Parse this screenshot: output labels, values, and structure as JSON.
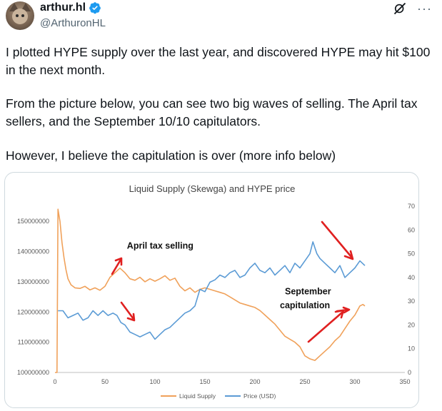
{
  "author": {
    "display_name": "arthur.hl",
    "handle": "@ArthuronHL",
    "avatar": "cat-avatar",
    "verified_color": "#1d9bf0"
  },
  "icons": {
    "grok": "grok-icon",
    "more": "more-icon"
  },
  "tweet": {
    "paragraphs": [
      "I plotted HYPE supply over the last year, and discovered HYPE may hit $100 in the next month.",
      "From the picture below, you can see two big waves of selling. The April tax sellers, and the September 10/10 capitulators.",
      "However, I believe the capitulation is over (more info below)"
    ]
  },
  "chart_data": {
    "type": "line",
    "title": "Liquid Supply (Skewga) and HYPE price",
    "x_ticks": [
      0,
      50,
      100,
      150,
      200,
      250,
      300,
      350
    ],
    "xlim": [
      0,
      350
    ],
    "y_left_ticks": [
      "100000000",
      "110000000",
      "120000000",
      "130000000",
      "140000000",
      "150000000"
    ],
    "y_left_range": [
      100000000,
      155000000
    ],
    "y_right_ticks": [
      "0",
      "10",
      "20",
      "30",
      "40",
      "50",
      "60",
      "70"
    ],
    "y_right_range": [
      0,
      70
    ],
    "grid": false,
    "legend_position": "bottom",
    "series": [
      {
        "name": "Liquid Supply",
        "axis": "left",
        "color": "#f0a15a",
        "points": [
          [
            0,
            100000000
          ],
          [
            1,
            100000000
          ],
          [
            2,
            100000000
          ],
          [
            3,
            154000000
          ],
          [
            5,
            150000000
          ],
          [
            7,
            143000000
          ],
          [
            9,
            138000000
          ],
          [
            11,
            134000000
          ],
          [
            13,
            131000000
          ],
          [
            16,
            129000000
          ],
          [
            20,
            128000000
          ],
          [
            25,
            127800000
          ],
          [
            30,
            128500000
          ],
          [
            35,
            127300000
          ],
          [
            40,
            128000000
          ],
          [
            45,
            127200000
          ],
          [
            50,
            128500000
          ],
          [
            55,
            131500000
          ],
          [
            60,
            133000000
          ],
          [
            65,
            134500000
          ],
          [
            70,
            133000000
          ],
          [
            75,
            131000000
          ],
          [
            80,
            130500000
          ],
          [
            85,
            131500000
          ],
          [
            90,
            130000000
          ],
          [
            95,
            131000000
          ],
          [
            100,
            130200000
          ],
          [
            105,
            131000000
          ],
          [
            110,
            132000000
          ],
          [
            115,
            130500000
          ],
          [
            120,
            131200000
          ],
          [
            125,
            128500000
          ],
          [
            130,
            127000000
          ],
          [
            135,
            128000000
          ],
          [
            140,
            126500000
          ],
          [
            145,
            127500000
          ],
          [
            150,
            128000000
          ],
          [
            155,
            127500000
          ],
          [
            160,
            127000000
          ],
          [
            165,
            126500000
          ],
          [
            170,
            126000000
          ],
          [
            175,
            125000000
          ],
          [
            180,
            124000000
          ],
          [
            185,
            123000000
          ],
          [
            190,
            122500000
          ],
          [
            195,
            122000000
          ],
          [
            200,
            121500000
          ],
          [
            205,
            120500000
          ],
          [
            210,
            119000000
          ],
          [
            215,
            117500000
          ],
          [
            220,
            116000000
          ],
          [
            225,
            114000000
          ],
          [
            230,
            112000000
          ],
          [
            235,
            111000000
          ],
          [
            240,
            110000000
          ],
          [
            245,
            108500000
          ],
          [
            250,
            105500000
          ],
          [
            255,
            104500000
          ],
          [
            260,
            104000000
          ],
          [
            265,
            105500000
          ],
          [
            270,
            107000000
          ],
          [
            275,
            108500000
          ],
          [
            280,
            110500000
          ],
          [
            285,
            112000000
          ],
          [
            290,
            114500000
          ],
          [
            295,
            117000000
          ],
          [
            300,
            119000000
          ],
          [
            305,
            122000000
          ],
          [
            308,
            122500000
          ],
          [
            310,
            122000000
          ]
        ]
      },
      {
        "name": "Price (USD)",
        "axis": "right",
        "color": "#5b9bd5",
        "points": [
          [
            3,
            26
          ],
          [
            8,
            26
          ],
          [
            13,
            23
          ],
          [
            18,
            24
          ],
          [
            23,
            25
          ],
          [
            28,
            22
          ],
          [
            33,
            23
          ],
          [
            38,
            26
          ],
          [
            43,
            24
          ],
          [
            48,
            26
          ],
          [
            53,
            24
          ],
          [
            58,
            25
          ],
          [
            62,
            24
          ],
          [
            66,
            21
          ],
          [
            70,
            20
          ],
          [
            75,
            17
          ],
          [
            80,
            16
          ],
          [
            85,
            15
          ],
          [
            90,
            16
          ],
          [
            95,
            17
          ],
          [
            100,
            14
          ],
          [
            105,
            16
          ],
          [
            110,
            18
          ],
          [
            115,
            19
          ],
          [
            120,
            21
          ],
          [
            125,
            23
          ],
          [
            130,
            25
          ],
          [
            135,
            26
          ],
          [
            140,
            28
          ],
          [
            145,
            35
          ],
          [
            150,
            34
          ],
          [
            155,
            38
          ],
          [
            160,
            39
          ],
          [
            165,
            41
          ],
          [
            170,
            40
          ],
          [
            175,
            42
          ],
          [
            180,
            43
          ],
          [
            185,
            40
          ],
          [
            190,
            41
          ],
          [
            195,
            44
          ],
          [
            200,
            46
          ],
          [
            205,
            43
          ],
          [
            210,
            42
          ],
          [
            215,
            44
          ],
          [
            220,
            41
          ],
          [
            225,
            43
          ],
          [
            230,
            45
          ],
          [
            235,
            42
          ],
          [
            240,
            46
          ],
          [
            245,
            44
          ],
          [
            250,
            47
          ],
          [
            255,
            50
          ],
          [
            258,
            55
          ],
          [
            262,
            50
          ],
          [
            265,
            48
          ],
          [
            270,
            46
          ],
          [
            275,
            44
          ],
          [
            280,
            42
          ],
          [
            285,
            45
          ],
          [
            290,
            40
          ],
          [
            295,
            42
          ],
          [
            300,
            44
          ],
          [
            305,
            47
          ],
          [
            310,
            45
          ]
        ]
      }
    ],
    "annotations": [
      {
        "text": "April tax selling",
        "x": 72,
        "y_left": 141000000
      },
      {
        "text": "September",
        "x": 230,
        "y_left": 125800000
      },
      {
        "text": "capitulation",
        "x": 225,
        "y_left": 121300000
      }
    ]
  }
}
